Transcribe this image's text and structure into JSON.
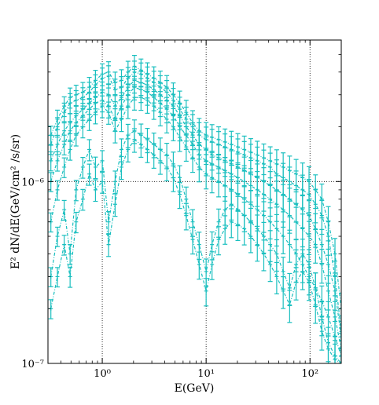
{
  "chart_data": {
    "type": "line",
    "xlabel": "E(GeV)",
    "ylabel": "E² dN/dE(GeV/cm² /s/sr)",
    "x_scale": "log",
    "y_scale": "log",
    "xlim": [
      0.3,
      200
    ],
    "ylim": [
      1e-07,
      6e-06
    ],
    "x_ticks": [
      {
        "value": 1,
        "label": "10⁰"
      },
      {
        "value": 10,
        "label": "10¹"
      },
      {
        "value": 100,
        "label": "10²"
      }
    ],
    "y_ticks": [
      {
        "value": 1e-07,
        "label": "10⁻⁷"
      },
      {
        "value": 1e-06,
        "label": "10⁻⁶"
      }
    ],
    "grid": true,
    "legend": "none",
    "color": "#1ABFBF",
    "x": [
      0.32,
      0.37,
      0.43,
      0.49,
      0.56,
      0.65,
      0.75,
      0.86,
      1.0,
      1.15,
      1.33,
      1.53,
      1.77,
      2.04,
      2.36,
      2.72,
      3.14,
      3.62,
      4.18,
      4.83,
      5.57,
      6.43,
      7.42,
      8.57,
      10.0,
      11.4,
      13.2,
      15.2,
      17.5,
      20.2,
      23.3,
      26.9,
      31.1,
      35.9,
      41.4,
      47.8,
      55.2,
      63.7,
      73.5,
      84.8,
      97.9,
      113,
      130,
      150,
      174,
      200
    ],
    "series": [
      {
        "values": [
          1.8e-06,
          2.2e-06,
          2.6e-06,
          2.9e-06,
          3e-06,
          3.1e-06,
          3.3e-06,
          3.6e-06,
          3.9e-06,
          4e-06,
          3.5e-06,
          3.6e-06,
          4e-06,
          4.3e-06,
          4.1e-06,
          3.9e-06,
          3.7e-06,
          3.5e-06,
          3.3e-06,
          3e-06,
          2.7e-06,
          2.4e-06,
          2.1e-06,
          1.9e-06,
          1.8e-06,
          1.75e-06,
          1.7e-06,
          1.65e-06,
          1.6e-06,
          1.55e-06,
          1.5e-06,
          1.45e-06,
          1.4e-06,
          1.35e-06,
          1.3e-06,
          1.25e-06,
          1.2e-06,
          1.15e-06,
          1.1e-06,
          1.05e-06,
          1e-06,
          9e-07,
          8e-07,
          6e-07,
          4e-07,
          2e-07
        ]
      },
      {
        "values": [
          1.6e-06,
          2e-06,
          2.4e-06,
          2.7e-06,
          2.8e-06,
          2.9e-06,
          3.1e-06,
          3.4e-06,
          3.7e-06,
          3.8e-06,
          3.2e-06,
          3.3e-06,
          3.7e-06,
          4e-06,
          3.9e-06,
          3.7e-06,
          3.5e-06,
          3.3e-06,
          3.1e-06,
          2.8e-06,
          2.5e-06,
          2.2e-06,
          2e-06,
          1.8e-06,
          1.7e-06,
          1.65e-06,
          1.6e-06,
          1.55e-06,
          1.5e-06,
          1.45e-06,
          1.4e-06,
          1.35e-06,
          1.3e-06,
          1.25e-06,
          1.2e-06,
          1.1e-06,
          1.05e-06,
          1e-06,
          9.5e-07,
          9e-07,
          8.5e-07,
          7.5e-07,
          6.5e-07,
          5e-07,
          3e-07,
          1.5e-07
        ]
      },
      {
        "values": [
          1.3e-06,
          1.6e-06,
          1.9e-06,
          2.1e-06,
          2.3e-06,
          2.5e-06,
          2.7e-06,
          2.9e-06,
          3.1e-06,
          3e-06,
          2.6e-06,
          2.9e-06,
          3.3e-06,
          3.6e-06,
          3.5e-06,
          3.4e-06,
          3.2e-06,
          3e-06,
          2.8e-06,
          2.6e-06,
          2.3e-06,
          2e-06,
          1.8e-06,
          1.6e-06,
          1.5e-06,
          1.4e-06,
          1.35e-06,
          1.3e-06,
          1.25e-06,
          1.2e-06,
          1.15e-06,
          1.1e-06,
          1.05e-06,
          1e-06,
          9.5e-07,
          9e-07,
          8.5e-07,
          8e-07,
          7.5e-07,
          7e-07,
          6.5e-07,
          5.5e-07,
          4.5e-07,
          3.5e-07,
          2.5e-07,
          1.4e-07
        ]
      },
      {
        "values": [
          1e-06,
          1.3e-06,
          1.6e-06,
          1.9e-06,
          2.1e-06,
          2.3e-06,
          2.5e-06,
          2.7e-06,
          2.8e-06,
          2.6e-06,
          2.2e-06,
          2.6e-06,
          3e-06,
          3.3e-06,
          3.2e-06,
          3.1e-06,
          2.9e-06,
          2.7e-06,
          2.5e-06,
          2.3e-06,
          2e-06,
          1.8e-06,
          1.6e-06,
          1.4e-06,
          1.3e-06,
          1.25e-06,
          1.2e-06,
          1.15e-06,
          1.1e-06,
          1.05e-06,
          1e-06,
          9.5e-07,
          9e-07,
          8.5e-07,
          8e-07,
          7.5e-07,
          7e-07,
          6.5e-07,
          6e-07,
          5.5e-07,
          5e-07,
          4.5e-07,
          3.5e-07,
          2.5e-07,
          1.8e-07,
          1.2e-07
        ]
      },
      {
        "values": [
          6e-07,
          9e-07,
          1.2e-06,
          1.5e-06,
          1.8e-06,
          2e-06,
          2.2e-06,
          2.4e-06,
          2.6e-06,
          2.4e-06,
          1.9e-06,
          2.2e-06,
          2.6e-06,
          2.9e-06,
          2.9e-06,
          2.8e-06,
          2.6e-06,
          2.4e-06,
          2.2e-06,
          2e-06,
          1.75e-06,
          1.55e-06,
          1.35e-06,
          1.2e-06,
          1.1e-06,
          1.05e-06,
          1e-06,
          9.5e-07,
          9e-07,
          8.5e-07,
          8e-07,
          7.5e-07,
          7e-07,
          6.5e-07,
          6e-07,
          5.5e-07,
          5e-07,
          4.5e-07,
          4e-07,
          3.5e-07,
          3e-07,
          2.6e-07,
          2.2e-07,
          1.8e-07,
          1.4e-07,
          1.1e-07
        ]
      },
      {
        "values": [
          3e-07,
          5e-07,
          7e-07,
          4e-07,
          9e-07,
          1.2e-06,
          1.5e-06,
          1.2e-06,
          1.3e-06,
          6e-07,
          1e-06,
          1.5e-06,
          1.8e-06,
          1.9e-06,
          1.8e-06,
          1.7e-06,
          1.6e-06,
          1.5e-06,
          1.4e-06,
          1.25e-06,
          1.05e-06,
          8e-07,
          6e-07,
          4.5e-07,
          3.2e-07,
          4.5e-07,
          6e-07,
          7e-07,
          7.5e-07,
          7e-07,
          6.5e-07,
          6e-07,
          5.5e-07,
          5e-07,
          4.5e-07,
          4e-07,
          3.2e-07,
          2.6e-07,
          3.5e-07,
          4e-07,
          3.5e-07,
          2.6e-07,
          1.8e-07,
          1.3e-07,
          1.1e-07,
          1e-07
        ]
      },
      {
        "values": [
          2e-07,
          3e-07,
          4.5e-07,
          3e-07,
          6e-07,
          8e-07,
          1.1e-06,
          9e-07,
          1e-06,
          4.5e-07,
          7.5e-07,
          1.2e-06,
          1.5e-06,
          1.7e-06,
          1.6e-06,
          1.5e-06,
          1.4e-06,
          1.3e-06,
          1.2e-06,
          1.05e-06,
          8.5e-07,
          6.5e-07,
          4.8e-07,
          3.5e-07,
          2.5e-07,
          3.5e-07,
          4.8e-07,
          5.5e-07,
          6e-07,
          5.8e-07,
          5.5e-07,
          5e-07,
          4.5e-07,
          4e-07,
          3.5e-07,
          3e-07,
          2.5e-07,
          2.1e-07,
          2.8e-07,
          3.2e-07,
          2.8e-07,
          2.1e-07,
          1.5e-07,
          1.2e-07,
          1.05e-07,
          1e-07
        ]
      }
    ]
  }
}
